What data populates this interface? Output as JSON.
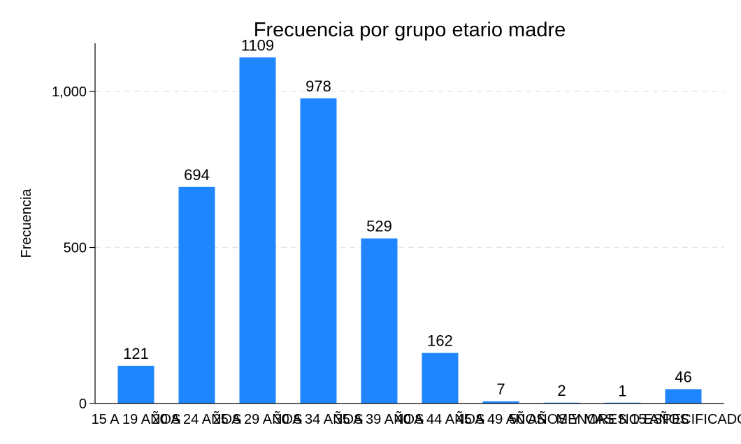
{
  "chart_data": {
    "type": "bar",
    "title": "Frecuencia por grupo etario madre",
    "xlabel": "",
    "ylabel": "Frecuencia",
    "categories": [
      "15 A 19 AÑOS",
      "20 A 24 AÑOS",
      "25 A 29 AÑOS",
      "30 A 34 AÑOS",
      "35 A 39 AÑOS",
      "40 A 44 AÑOS",
      "45 A 49 AÑOS",
      "50 AÑOS Y MAS",
      "MENORES 15 AÑOS",
      "NO ESPECIFICADO"
    ],
    "values": [
      121,
      694,
      1109,
      978,
      529,
      162,
      7,
      2,
      1,
      46
    ],
    "data_labels": [
      "121",
      "694",
      "1109",
      "978",
      "529",
      "162",
      "7",
      "2",
      "1",
      "46"
    ],
    "ylim": [
      0,
      1150
    ],
    "yticks": [
      0,
      500,
      1000
    ],
    "ytick_labels": [
      "0",
      "500",
      "1,000"
    ],
    "grid": true,
    "bar_color": "#1f86ff",
    "grid_color": "#e6e6e6"
  }
}
